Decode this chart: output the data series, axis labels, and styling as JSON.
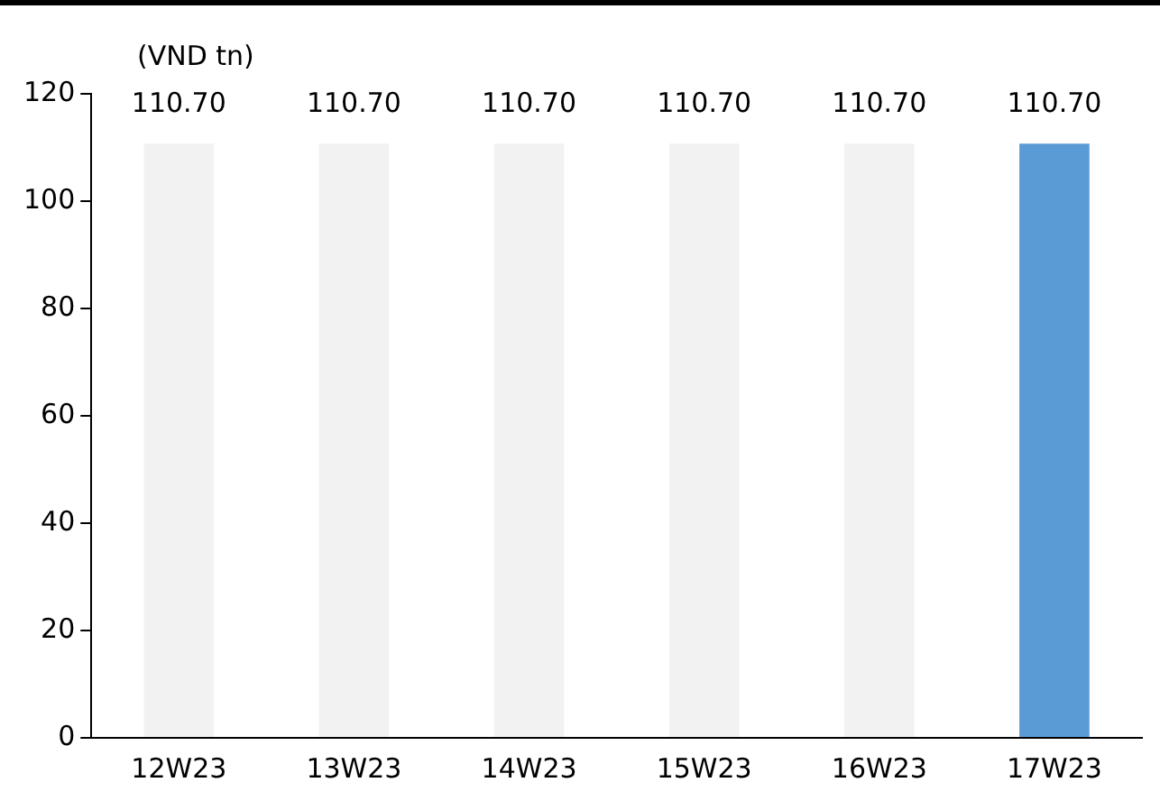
{
  "chart_data": {
    "type": "bar",
    "ylabel": "(VND tn)",
    "categories": [
      "12W23",
      "13W23",
      "14W23",
      "15W23",
      "16W23",
      "17W23"
    ],
    "values": [
      110.7,
      110.7,
      110.7,
      110.7,
      110.7,
      110.7
    ],
    "colors": [
      "#f2f2f2",
      "#f2f2f2",
      "#f2f2f2",
      "#f2f2f2",
      "#f2f2f2",
      "#5b9bd5"
    ],
    "value_labels": [
      "110.70",
      "110.70",
      "110.70",
      "110.70",
      "110.70",
      "110.70"
    ],
    "ylim": [
      0,
      120
    ],
    "yticks": [
      0,
      20,
      40,
      60,
      80,
      100,
      120
    ],
    "grid": false,
    "legend": false
  }
}
